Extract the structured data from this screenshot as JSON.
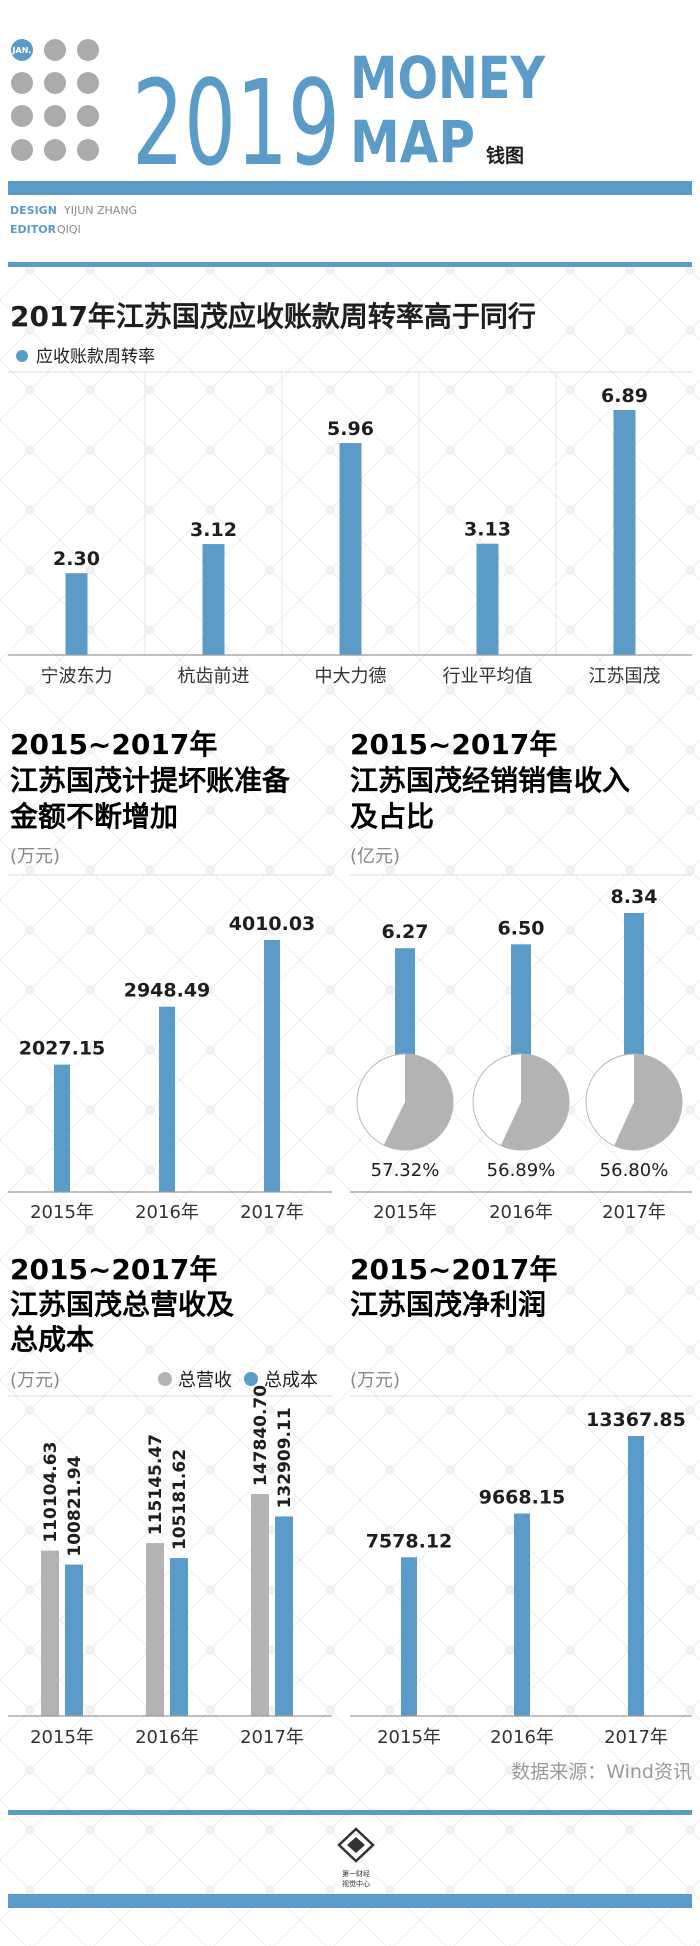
{
  "header": {
    "badge": "JAN.",
    "year": "2019",
    "title_line1": "MONEY",
    "title_line2": "MAP",
    "subtitle": "钱图",
    "design_label": "DESIGN",
    "design_name": "YIJUN ZHANG",
    "editor_label": "EDITOR",
    "editor_name": "QIQI"
  },
  "colors": {
    "accent": "#5b9bc8",
    "gray": "#b3b3b3",
    "text": "#1e1e1e"
  },
  "footer": {
    "source": "数据来源：Wind资讯",
    "logo_line1": "第一财经",
    "logo_line2": "视觉中心"
  },
  "chart_data": [
    {
      "type": "bar",
      "title": "2017年江苏国茂应收账款周转率高于同行",
      "legend": [
        "应收账款周转率"
      ],
      "categories": [
        "宁波东力",
        "杭齿前进",
        "中大力德",
        "行业平均值",
        "江苏国茂"
      ],
      "values": [
        2.3,
        3.12,
        5.96,
        3.13,
        6.89
      ],
      "labels": [
        "2.30",
        "3.12",
        "5.96",
        "3.13",
        "6.89"
      ]
    },
    {
      "type": "bar",
      "title_lines": [
        "2015~2017年",
        "江苏国茂计提坏账准备",
        "金额不断增加"
      ],
      "unit": "(万元)",
      "categories": [
        "2015年",
        "2016年",
        "2017年"
      ],
      "values": [
        2027.15,
        2948.49,
        4010.03
      ],
      "labels": [
        "2027.15",
        "2948.49",
        "4010.03"
      ]
    },
    {
      "type": "bar",
      "title_lines": [
        "2015~2017年",
        "江苏国茂经销销售收入",
        "及占比"
      ],
      "unit": "(亿元)",
      "categories": [
        "2015年",
        "2016年",
        "2017年"
      ],
      "values": [
        6.27,
        6.5,
        8.34
      ],
      "labels": [
        "6.27",
        "6.50",
        "8.34"
      ],
      "share_percent": [
        57.32,
        56.89,
        56.8
      ],
      "share_labels": [
        "57.32%",
        "56.89%",
        "56.80%"
      ]
    },
    {
      "type": "bar",
      "title_lines": [
        "2015~2017年",
        "江苏国茂总营收及",
        "总成本"
      ],
      "unit": "(万元)",
      "categories": [
        "2015年",
        "2016年",
        "2017年"
      ],
      "series": [
        {
          "name": "总营收",
          "values": [
            110104.63,
            115145.47,
            147840.7
          ],
          "labels": [
            "110104.63",
            "115145.47",
            "147840.70"
          ]
        },
        {
          "name": "总成本",
          "values": [
            100821.94,
            105181.62,
            132909.11
          ],
          "labels": [
            "100821.94",
            "105181.62",
            "132909.11"
          ]
        }
      ]
    },
    {
      "type": "bar",
      "title_lines": [
        "2015~2017年",
        "江苏国茂净利润"
      ],
      "unit": "(万元)",
      "categories": [
        "2015年",
        "2016年",
        "2017年"
      ],
      "values": [
        7578.12,
        9668.15,
        13367.85
      ],
      "labels": [
        "7578.12",
        "9668.15",
        "13367.85"
      ]
    }
  ]
}
